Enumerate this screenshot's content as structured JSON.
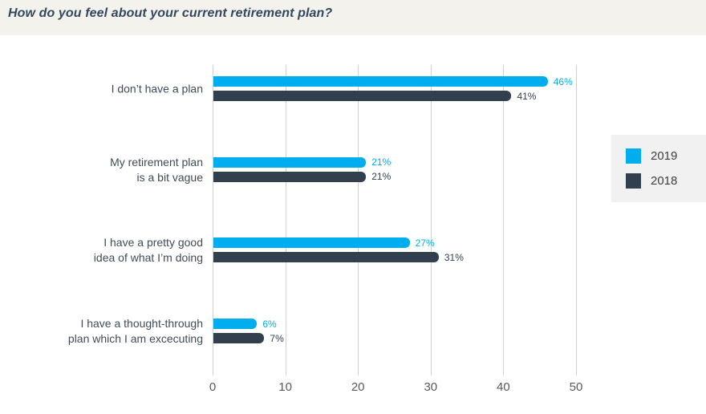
{
  "header": {
    "title": "How do you feel about your current retirement plan?"
  },
  "chart_data": {
    "type": "bar",
    "orientation": "horizontal",
    "title": "How do you feel about your current retirement plan?",
    "categories": [
      "I don’t have a plan",
      "My retirement plan\nis a bit vague",
      "I have a pretty good\nidea of what I’m doing",
      "I have a thought-through\nplan which I am excecuting"
    ],
    "series": [
      {
        "name": "2019",
        "color": "#00aeef",
        "values": [
          46,
          21,
          27,
          6
        ],
        "labels": [
          "46%",
          "21%",
          "27%",
          "6%"
        ]
      },
      {
        "name": "2018",
        "color": "#32404e",
        "values": [
          41,
          21,
          31,
          7
        ],
        "labels": [
          "41%",
          "21%",
          "31%",
          "7%"
        ]
      }
    ],
    "value_suffix": "%",
    "xlim": [
      0,
      50
    ],
    "x_ticks": [
      0,
      10,
      20,
      30,
      40,
      50
    ],
    "grid": true,
    "legend_position": "right"
  },
  "legend": {
    "items": [
      {
        "label": "2019",
        "color": "#00aeef"
      },
      {
        "label": "2018",
        "color": "#32404e"
      }
    ]
  },
  "colors": {
    "header_background": "#f4f2ed",
    "title_text": "#33485e",
    "category_text": "#414b57",
    "tick_text": "#595959",
    "gridline": "#cfcfcf",
    "legend_background": "#f1f1f1",
    "legend_text": "#404040",
    "series_2019": "#00aeef",
    "series_2018": "#32404e"
  }
}
